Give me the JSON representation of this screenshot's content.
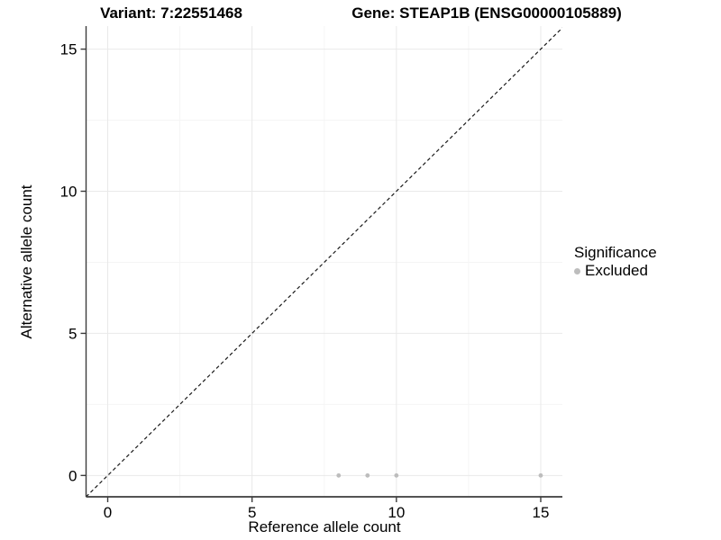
{
  "titles": {
    "variant": "Variant: 7:22551468",
    "gene": "Gene: STEAP1B (ENSG00000105889)"
  },
  "axes": {
    "x_label": "Reference allele count",
    "y_label": "Alternative allele count"
  },
  "legend": {
    "title": "Significance",
    "items": [
      {
        "label": "Excluded",
        "color": "#bdbdbd"
      }
    ]
  },
  "colors": {
    "background": "#ffffff",
    "axis_line": "#3c3c3c",
    "grid_major": "#e9e9e9",
    "grid_minor": "#f5f5f5",
    "reference_line": "#1a1a1a",
    "tick_text": "#000000",
    "point": "#bdbdbd"
  },
  "chart_data": {
    "type": "scatter",
    "title": "Variant: 7:22551468  |  Gene: STEAP1B (ENSG00000105889)",
    "xlabel": "Reference allele count",
    "ylabel": "Alternative allele count",
    "xlim": [
      -0.75,
      15.75
    ],
    "ylim": [
      -0.75,
      15.81
    ],
    "x_major_ticks": [
      0,
      5,
      10,
      15
    ],
    "y_major_ticks": [
      0,
      5,
      10,
      15
    ],
    "x_minor_ticks": [
      2.5,
      7.5,
      12.5
    ],
    "y_minor_ticks": [
      2.5,
      7.5,
      12.5
    ],
    "grid": true,
    "legend_position": "right",
    "series": [
      {
        "name": "Excluded",
        "color": "#bdbdbd",
        "points": [
          [
            8,
            0
          ],
          [
            9,
            0
          ],
          [
            10,
            0
          ],
          [
            15,
            0
          ]
        ]
      }
    ],
    "reference_line": {
      "style": "dashed",
      "slope": 1,
      "intercept": 0
    }
  }
}
